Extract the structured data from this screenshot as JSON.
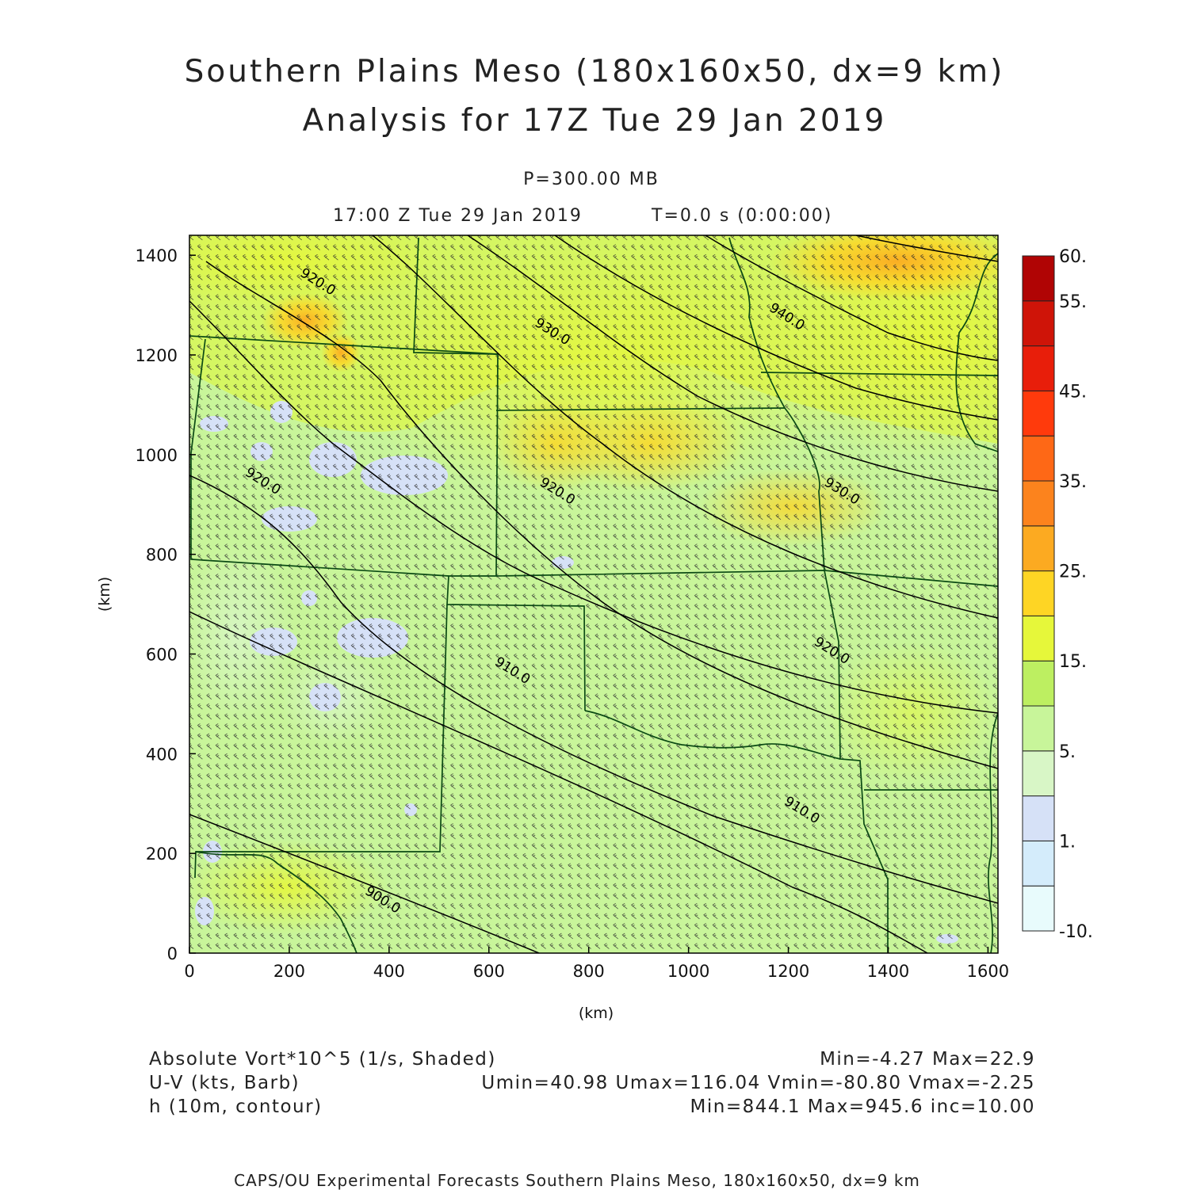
{
  "header": {
    "title_line1": "Southern Plains Meso (180x160x50, dx=9 km)",
    "title_line2": "Analysis for 17Z Tue 29 Jan 2019",
    "level": "P=300.00 MB",
    "valid_time": "17:00 Z Tue 29 Jan 2019",
    "forecast_time": "T=0.0 s (0:00:00)"
  },
  "footer": {
    "field1_name": "Absolute Vort*10^5 (1/s, Shaded)",
    "field1_stats": "Min=-4.27 Max=22.9",
    "field2_name": "U-V (kts, Barb)",
    "field2_stats": "Umin=40.98 Umax=116.04 Vmin=-80.80 Vmax=-2.25",
    "field3_name": "h (10m, contour)",
    "field3_stats": "Min=844.1 Max=945.6 inc=10.00",
    "credit": "CAPS/OU Experimental Forecasts  Southern Plains Meso, 180x160x50, dx=9 km"
  },
  "colors": {
    "bar_colors": [
      "#e8fbfc",
      "#d4ecfb",
      "#d6e1f7",
      "#d8f6c6",
      "#c8f59a",
      "#bdef61",
      "#e6f73a",
      "#fed524",
      "#fcaa21",
      "#fc831d",
      "#fe6816",
      "#ff3a0c",
      "#e81e0a",
      "#cf1408",
      "#b00404"
    ],
    "contour": "#000000",
    "state_border": "#0b4a14",
    "barb": "#2b2b2b"
  },
  "chart_data": {
    "type": "heatmap",
    "title": "Southern Plains Meso (180x160x50, dx=9 km)",
    "xlabel": "(km)",
    "ylabel": "(km)",
    "xlim": [
      0,
      1620
    ],
    "ylim": [
      0,
      1440
    ],
    "x_ticks": [
      0,
      200,
      400,
      600,
      800,
      1000,
      1200,
      1400,
      1600
    ],
    "y_ticks": [
      0,
      200,
      400,
      600,
      800,
      1000,
      1200,
      1400
    ],
    "x_tick_labels": [
      "0",
      "200",
      "400",
      "600",
      "800",
      "1000",
      "1200",
      "1400",
      "1600"
    ],
    "y_tick_labels": [
      "0",
      "200",
      "400",
      "600",
      "800",
      "1000",
      "1200",
      "1400"
    ],
    "colorbar": {
      "labels": [
        "-10.",
        "1.",
        "5.",
        "15.",
        "25.",
        "35.",
        "45.",
        "55.",
        "60."
      ],
      "label_band_index": [
        0,
        2,
        4,
        6,
        8,
        10,
        12,
        14,
        15
      ]
    },
    "contour_labels": [
      {
        "text": "920.0",
        "x": 220,
        "y": 1360
      },
      {
        "text": "930.0",
        "x": 690,
        "y": 1260
      },
      {
        "text": "940.0",
        "x": 1160,
        "y": 1290
      },
      {
        "text": "920.0",
        "x": 110,
        "y": 960
      },
      {
        "text": "920.0",
        "x": 700,
        "y": 940
      },
      {
        "text": "930.0",
        "x": 1270,
        "y": 940
      },
      {
        "text": "910.0",
        "x": 610,
        "y": 580
      },
      {
        "text": "920.0",
        "x": 1250,
        "y": 620
      },
      {
        "text": "900.0",
        "x": 350,
        "y": 120
      },
      {
        "text": "910.0",
        "x": 1190,
        "y": 300
      }
    ],
    "series": [
      {
        "type": "shaded_field",
        "name": "Absolute Vort*10^5 (1/s, Shaded)",
        "min": -4.27,
        "max": 22.9
      },
      {
        "type": "wind_barbs",
        "name": "U-V (kts, Barb)",
        "umin": 40.98,
        "umax": 116.04,
        "vmin": -80.8,
        "vmax": -2.25
      },
      {
        "type": "contour",
        "name": "h (10m, contour)",
        "min": 844.1,
        "max": 945.6,
        "inc": 10.0
      }
    ]
  }
}
